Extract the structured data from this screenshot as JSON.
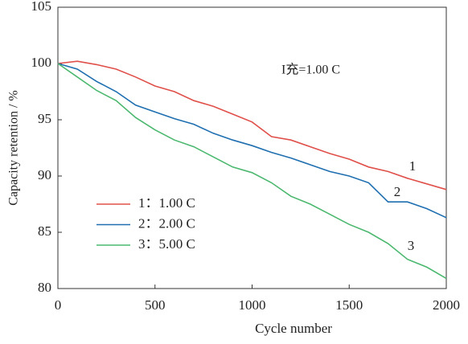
{
  "chart_data": {
    "type": "line",
    "x_label": "Cycle number",
    "y_label": "Capacity retention / %",
    "annotation": "I充=1.00 C",
    "curve_labels": [
      "1",
      "2",
      "3"
    ],
    "x": [
      0,
      100,
      200,
      300,
      400,
      500,
      600,
      700,
      800,
      900,
      1000,
      1100,
      1200,
      1300,
      1400,
      1500,
      1600,
      1700,
      1800,
      1900,
      2000
    ],
    "series": [
      {
        "name": "1：1.00 C",
        "color": "#e0504a",
        "values": [
          100,
          100.2,
          99.9,
          99.5,
          98.8,
          98.0,
          97.5,
          96.7,
          96.2,
          95.5,
          94.8,
          93.5,
          93.2,
          92.6,
          92.0,
          91.5,
          90.8,
          90.4,
          89.8,
          89.3,
          88.8
        ]
      },
      {
        "name": "2：2.00 C",
        "color": "#1f6fb0",
        "values": [
          100,
          99.5,
          98.4,
          97.5,
          96.3,
          95.7,
          95.1,
          94.6,
          93.8,
          93.2,
          92.7,
          92.1,
          91.6,
          91.0,
          90.4,
          90.0,
          89.4,
          87.7,
          87.7,
          87.1,
          86.3
        ]
      },
      {
        "name": "3：5.00 C",
        "color": "#4cb870",
        "values": [
          100,
          98.8,
          97.6,
          96.7,
          95.2,
          94.1,
          93.2,
          92.6,
          91.7,
          90.8,
          90.3,
          89.4,
          88.2,
          87.5,
          86.6,
          85.7,
          85.0,
          84.0,
          82.6,
          81.9,
          80.9
        ]
      }
    ],
    "xlim": [
      0,
      2000
    ],
    "xticks": [
      0,
      500,
      1000,
      1500,
      2000
    ],
    "ylim": [
      80,
      105
    ],
    "yticks": [
      80,
      85,
      90,
      95,
      100,
      105
    ]
  }
}
